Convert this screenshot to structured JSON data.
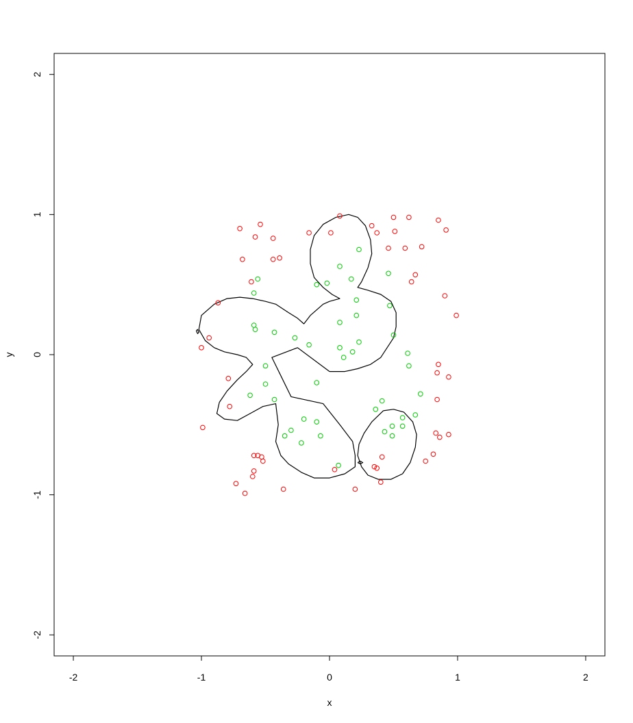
{
  "chart_data": {
    "type": "scatter",
    "title": "",
    "xlabel": "x",
    "ylabel": "y",
    "xlim": [
      -2.15,
      2.15
    ],
    "ylim": [
      -2.15,
      2.15
    ],
    "x_ticks": [
      -2,
      -1,
      0,
      1,
      2
    ],
    "y_ticks": [
      -2,
      -1,
      0,
      1,
      2
    ],
    "x_tick_labels": [
      "-2",
      "-1",
      "0",
      "1",
      "2"
    ],
    "y_tick_labels": [
      "-2",
      "-1",
      "0",
      "1",
      "2"
    ],
    "grid": false,
    "legend": "none",
    "colors": {
      "red": "#ff0000",
      "green": "#00cd00",
      "boundary": "#000000"
    },
    "series": [
      {
        "color": "red",
        "points": [
          [
            0.08,
            0.99
          ],
          [
            0.33,
            0.92
          ],
          [
            0.37,
            0.87
          ],
          [
            0.5,
            0.98
          ],
          [
            0.62,
            0.98
          ],
          [
            0.51,
            0.88
          ],
          [
            0.85,
            0.96
          ],
          [
            0.91,
            0.89
          ],
          [
            0.46,
            0.76
          ],
          [
            0.59,
            0.76
          ],
          [
            0.72,
            0.77
          ],
          [
            0.67,
            0.57
          ],
          [
            0.64,
            0.52
          ],
          [
            0.9,
            0.42
          ],
          [
            0.99,
            0.28
          ],
          [
            0.85,
            -0.07
          ],
          [
            0.84,
            -0.13
          ],
          [
            0.93,
            -0.16
          ],
          [
            0.84,
            -0.32
          ],
          [
            0.83,
            -0.56
          ],
          [
            0.86,
            -0.59
          ],
          [
            0.93,
            -0.57
          ],
          [
            0.81,
            -0.71
          ],
          [
            0.75,
            -0.76
          ],
          [
            -0.7,
            0.9
          ],
          [
            -0.54,
            0.93
          ],
          [
            -0.58,
            0.84
          ],
          [
            -0.44,
            0.83
          ],
          [
            -0.68,
            0.68
          ],
          [
            -0.44,
            0.68
          ],
          [
            -0.39,
            0.69
          ],
          [
            -0.16,
            0.87
          ],
          [
            0.01,
            0.87
          ],
          [
            -0.61,
            0.52
          ],
          [
            -0.87,
            0.37
          ],
          [
            -0.94,
            0.12
          ],
          [
            -1.0,
            0.05
          ],
          [
            -0.79,
            -0.17
          ],
          [
            -0.78,
            -0.37
          ],
          [
            -0.99,
            -0.52
          ],
          [
            -0.59,
            -0.72
          ],
          [
            -0.56,
            -0.72
          ],
          [
            -0.53,
            -0.73
          ],
          [
            -0.52,
            -0.76
          ],
          [
            -0.59,
            -0.83
          ],
          [
            -0.6,
            -0.87
          ],
          [
            -0.73,
            -0.92
          ],
          [
            -0.66,
            -0.99
          ],
          [
            -0.36,
            -0.96
          ],
          [
            0.04,
            -0.82
          ],
          [
            0.2,
            -0.96
          ],
          [
            0.35,
            -0.8
          ],
          [
            0.37,
            -0.81
          ],
          [
            0.41,
            -0.73
          ],
          [
            0.4,
            -0.91
          ]
        ]
      },
      {
        "color": "green",
        "points": [
          [
            0.23,
            0.75
          ],
          [
            0.08,
            0.63
          ],
          [
            0.17,
            0.54
          ],
          [
            0.46,
            0.58
          ],
          [
            -0.1,
            0.5
          ],
          [
            -0.02,
            0.51
          ],
          [
            0.21,
            0.39
          ],
          [
            0.47,
            0.35
          ],
          [
            0.21,
            0.28
          ],
          [
            0.08,
            0.23
          ],
          [
            0.5,
            0.14
          ],
          [
            0.23,
            0.09
          ],
          [
            0.08,
            0.05
          ],
          [
            0.18,
            0.02
          ],
          [
            0.11,
            -0.02
          ],
          [
            0.61,
            0.01
          ],
          [
            0.62,
            -0.08
          ],
          [
            -0.56,
            0.54
          ],
          [
            -0.59,
            0.44
          ],
          [
            -0.59,
            0.21
          ],
          [
            -0.58,
            0.18
          ],
          [
            -0.43,
            0.16
          ],
          [
            -0.27,
            0.12
          ],
          [
            -0.16,
            0.07
          ],
          [
            -0.5,
            -0.08
          ],
          [
            -0.5,
            -0.21
          ],
          [
            -0.62,
            -0.29
          ],
          [
            -0.43,
            -0.32
          ],
          [
            -0.1,
            -0.2
          ],
          [
            0.71,
            -0.28
          ],
          [
            0.41,
            -0.33
          ],
          [
            0.36,
            -0.39
          ],
          [
            0.67,
            -0.43
          ],
          [
            0.57,
            -0.45
          ],
          [
            0.49,
            -0.51
          ],
          [
            0.57,
            -0.51
          ],
          [
            0.43,
            -0.55
          ],
          [
            0.49,
            -0.58
          ],
          [
            -0.2,
            -0.46
          ],
          [
            -0.1,
            -0.48
          ],
          [
            -0.3,
            -0.54
          ],
          [
            -0.35,
            -0.58
          ],
          [
            -0.07,
            -0.58
          ],
          [
            -0.22,
            -0.63
          ],
          [
            0.07,
            -0.79
          ]
        ]
      }
    ],
    "boundaries": [
      [
        [
          0.0,
          -0.12
        ],
        [
          -0.25,
          0.05
        ],
        [
          -0.45,
          -0.02
        ],
        [
          -0.38,
          -0.15
        ],
        [
          -0.3,
          -0.3
        ],
        [
          -0.05,
          -0.35
        ],
        [
          0.08,
          -0.5
        ],
        [
          0.18,
          -0.62
        ],
        [
          0.2,
          -0.72
        ],
        [
          0.2,
          -0.8
        ],
        [
          0.12,
          -0.85
        ],
        [
          0.0,
          -0.88
        ],
        [
          -0.12,
          -0.88
        ],
        [
          -0.22,
          -0.84
        ],
        [
          -0.32,
          -0.78
        ],
        [
          -0.38,
          -0.72
        ],
        [
          -0.42,
          -0.62
        ],
        [
          -0.4,
          -0.5
        ],
        [
          -0.42,
          -0.35
        ],
        [
          -0.52,
          -0.37
        ],
        [
          -0.62,
          -0.42
        ],
        [
          -0.72,
          -0.47
        ],
        [
          -0.82,
          -0.46
        ],
        [
          -0.88,
          -0.42
        ],
        [
          -0.86,
          -0.34
        ],
        [
          -0.8,
          -0.26
        ],
        [
          -0.72,
          -0.18
        ],
        [
          -0.65,
          -0.12
        ],
        [
          -0.6,
          -0.07
        ],
        [
          -0.65,
          -0.02
        ],
        [
          -0.72,
          0.0
        ],
        [
          -0.82,
          0.02
        ],
        [
          -0.9,
          0.05
        ],
        [
          -0.97,
          0.1
        ],
        [
          -1.02,
          0.18
        ],
        [
          -1.0,
          0.28
        ],
        [
          -0.9,
          0.36
        ],
        [
          -0.8,
          0.4
        ],
        [
          -0.7,
          0.41
        ],
        [
          -0.6,
          0.4
        ],
        [
          -0.5,
          0.38
        ],
        [
          -0.42,
          0.36
        ],
        [
          -0.32,
          0.3
        ],
        [
          -0.25,
          0.26
        ],
        [
          -0.2,
          0.22
        ],
        [
          -0.15,
          0.28
        ],
        [
          -0.05,
          0.36
        ],
        [
          0.0,
          0.38
        ],
        [
          0.08,
          0.4
        ],
        [
          0.02,
          0.43
        ],
        [
          -0.05,
          0.48
        ],
        [
          -0.12,
          0.55
        ],
        [
          -0.15,
          0.65
        ],
        [
          -0.15,
          0.75
        ],
        [
          -0.12,
          0.85
        ],
        [
          -0.05,
          0.93
        ],
        [
          0.05,
          0.98
        ],
        [
          0.15,
          1.0
        ],
        [
          0.22,
          0.98
        ],
        [
          0.28,
          0.92
        ],
        [
          0.32,
          0.82
        ],
        [
          0.33,
          0.72
        ],
        [
          0.3,
          0.62
        ],
        [
          0.25,
          0.52
        ],
        [
          0.22,
          0.48
        ],
        [
          0.3,
          0.46
        ],
        [
          0.4,
          0.43
        ],
        [
          0.48,
          0.38
        ],
        [
          0.52,
          0.3
        ],
        [
          0.52,
          0.2
        ],
        [
          0.5,
          0.12
        ],
        [
          0.45,
          0.05
        ],
        [
          0.4,
          -0.02
        ],
        [
          0.32,
          -0.07
        ],
        [
          0.22,
          -0.1
        ],
        [
          0.12,
          -0.12
        ],
        [
          0.0,
          -0.12
        ]
      ],
      [
        [
          0.42,
          -0.4
        ],
        [
          0.33,
          -0.48
        ],
        [
          0.27,
          -0.56
        ],
        [
          0.23,
          -0.64
        ],
        [
          0.22,
          -0.72
        ],
        [
          0.25,
          -0.8
        ],
        [
          0.3,
          -0.86
        ],
        [
          0.38,
          -0.89
        ],
        [
          0.48,
          -0.89
        ],
        [
          0.57,
          -0.85
        ],
        [
          0.63,
          -0.77
        ],
        [
          0.67,
          -0.66
        ],
        [
          0.68,
          -0.57
        ],
        [
          0.65,
          -0.48
        ],
        [
          0.58,
          -0.41
        ],
        [
          0.5,
          -0.39
        ],
        [
          0.42,
          -0.4
        ]
      ],
      [
        [
          -1.04,
          0.17
        ],
        [
          -1.03,
          0.15
        ],
        [
          -1.02,
          0.16
        ],
        [
          -1.03,
          0.18
        ],
        [
          -1.04,
          0.17
        ]
      ],
      [
        [
          0.22,
          -0.77
        ],
        [
          0.24,
          -0.78
        ],
        [
          0.26,
          -0.77
        ],
        [
          0.24,
          -0.76
        ],
        [
          0.22,
          -0.77
        ]
      ]
    ]
  }
}
